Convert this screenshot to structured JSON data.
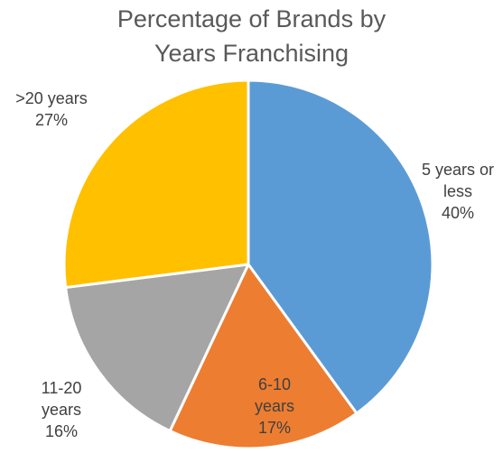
{
  "chart_data": {
    "type": "pie",
    "title_lines": [
      "Percentage of Brands by",
      "Years Franchising"
    ],
    "slices": [
      {
        "label_lines": [
          "5 years or",
          "less"
        ],
        "percent_text": "40%",
        "value": 40,
        "color": "#5B9BD5"
      },
      {
        "label_lines": [
          "6-10",
          "years"
        ],
        "percent_text": "17%",
        "value": 17,
        "color": "#ED7D31"
      },
      {
        "label_lines": [
          "11-20",
          "years"
        ],
        "percent_text": "16%",
        "value": 16,
        "color": "#A5A5A5"
      },
      {
        "label_lines": [
          ">20 years"
        ],
        "percent_text": "27%",
        "value": 27,
        "color": "#FFC000"
      }
    ],
    "start_angle": "12 o'clock",
    "direction": "clockwise",
    "slice_border_color": "#FFFFFF",
    "legend": "none"
  }
}
